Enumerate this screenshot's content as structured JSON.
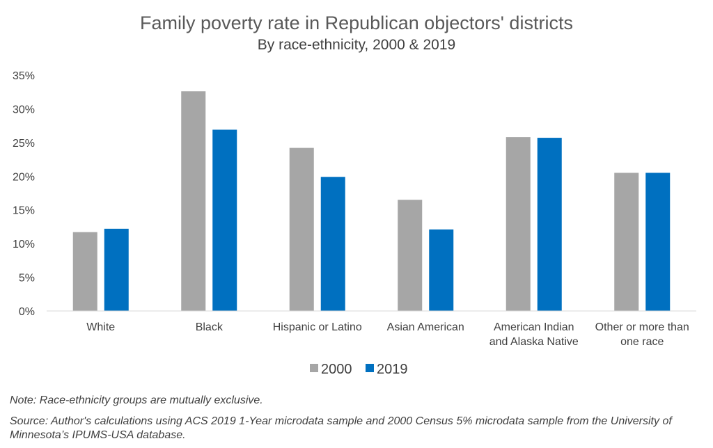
{
  "chart_data": {
    "type": "bar",
    "title": "Family poverty rate in Republican objectors' districts",
    "subtitle": "By race-ethnicity, 2000 & 2019",
    "categories": [
      [
        "White"
      ],
      [
        "Black"
      ],
      [
        "Hispanic or Latino"
      ],
      [
        "Asian American"
      ],
      [
        "American Indian",
        "and Alaska Native"
      ],
      [
        "Other or more than",
        "one race"
      ]
    ],
    "series": [
      {
        "name": "2000",
        "color": "#a6a6a6",
        "values": [
          11.7,
          32.6,
          24.2,
          16.5,
          25.8,
          20.5
        ]
      },
      {
        "name": "2019",
        "color": "#0070c0",
        "values": [
          12.2,
          26.9,
          19.9,
          12.1,
          25.7,
          20.5
        ]
      }
    ],
    "ylim": [
      0,
      35
    ],
    "yticks": [
      "0%",
      "5%",
      "10%",
      "15%",
      "20%",
      "25%",
      "30%",
      "35%"
    ],
    "grid": false,
    "legend_position": "bottom"
  },
  "notes": {
    "note": "Note: Race-ethnicity groups are mutually exclusive.",
    "source": "Source: Author's calculations using ACS 2019 1-Year microdata sample and 2000 Census 5% microdata sample from the University of Minnesota’s IPUMS-USA database."
  }
}
